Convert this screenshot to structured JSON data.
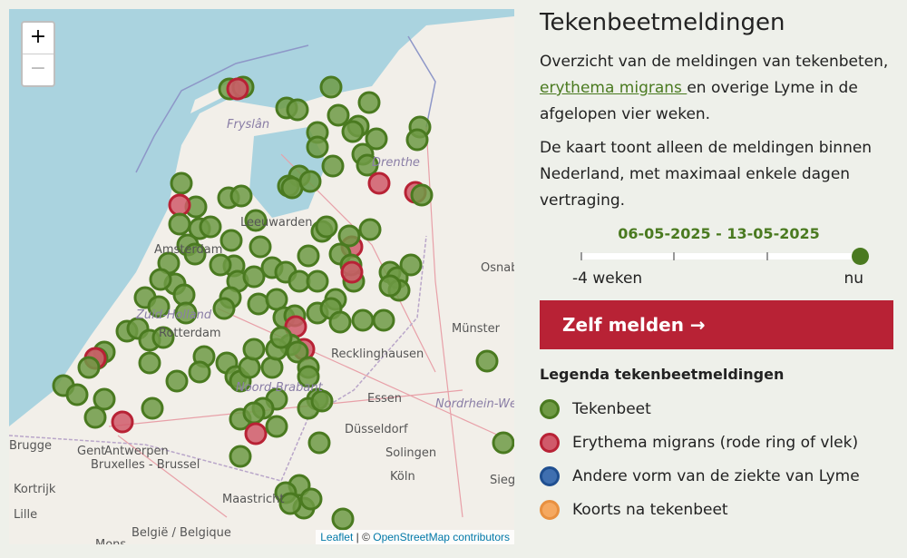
{
  "map": {
    "zoom_in": "+",
    "zoom_out": "−",
    "attribution_leaflet": "Leaflet",
    "attribution_sep": " | © ",
    "attribution_osm": "OpenStreetMap contributors",
    "labels": [
      "Fryslân",
      "Drenthe",
      "Leeuwarden",
      "Amsterdam",
      "Zuid-Holland",
      "Rotterdam",
      "Noord-Brabant",
      "Münster",
      "Osnabrück",
      "Recklinghausen",
      "Essen",
      "Düsseldorf",
      "Nordrhein-Westfalen",
      "Solingen",
      "Köln",
      "Siegen",
      "Brugge",
      "Gent",
      "Antwerpen",
      "Bruxelles - Brussel",
      "Kortrijk",
      "Lille",
      "Maastricht",
      "België / Belgique",
      "Mons"
    ]
  },
  "panel": {
    "title": "Tekenbeetmeldingen",
    "intro_before": "Overzicht van de meldingen van tekenbeten, ",
    "intro_link": "erythema migrans ",
    "intro_after": "en overige Lyme in de afgelopen vier weken.",
    "note": "De kaart toont alleen de meldingen binnen Nederland, met maximaal enkele dagen vertraging.",
    "date_range": "06-05-2025 - 13-05-2025",
    "slider": {
      "min_label": "-4 weken",
      "max_label": "nu",
      "value": 4,
      "max": 4
    },
    "report_button": "Zelf melden →",
    "legend_title": "Legenda tekenbeetmeldingen",
    "legend": [
      {
        "label": "Tekenbeet",
        "color": "#6f9a45",
        "border": "#4a7a20"
      },
      {
        "label": "Erythema migrans (rode ring of vlek)",
        "color": "#d05a6a",
        "border": "#b82235"
      },
      {
        "label": "Andere vorm van de ziekte van Lyme",
        "color": "#3f6fb0",
        "border": "#1f4f90"
      },
      {
        "label": "Koorts na tekenbeet",
        "color": "#f5a860",
        "border": "#e89040"
      }
    ]
  }
}
